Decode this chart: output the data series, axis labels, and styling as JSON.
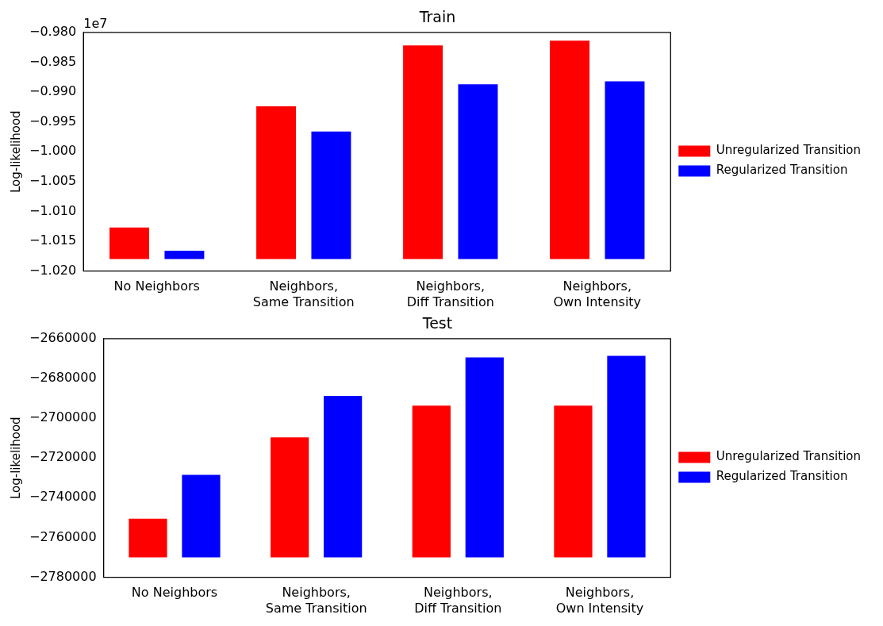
{
  "chart_data": [
    {
      "type": "bar",
      "title": "Train",
      "ylabel": "Log-likelihood",
      "annotations": [
        "1e7"
      ],
      "categories": [
        "No Neighbors",
        "Neighbors, Same Transition",
        "Neighbors, Diff Transition",
        "Neighbors, Own Intensity"
      ],
      "series": [
        {
          "name": "Unregularized Transition",
          "color": "#ff0000",
          "values": [
            0.0053,
            0.0256,
            0.0358,
            0.0366
          ],
          "base": [
            -1.018,
            -1.018,
            -1.018,
            -1.018
          ]
        },
        {
          "name": "Regularized Transition",
          "color": "#0000ff",
          "values": [
            0.0014,
            0.0214,
            0.0293,
            0.0298
          ],
          "base": [
            -1.018,
            -1.018,
            -1.018,
            -1.018
          ]
        }
      ],
      "ylim": [
        -1.02,
        -0.98
      ],
      "yticks": [
        {
          "value": -1.02,
          "label": "−1.020"
        },
        {
          "value": -1.015,
          "label": "−1.015"
        },
        {
          "value": -1.01,
          "label": "−1.010"
        },
        {
          "value": -1.005,
          "label": "−1.005"
        },
        {
          "value": -1.0,
          "label": "−1.000"
        },
        {
          "value": -0.995,
          "label": "−0.995"
        },
        {
          "value": -0.99,
          "label": "−0.990"
        },
        {
          "value": -0.985,
          "label": "−0.985"
        },
        {
          "value": -0.98,
          "label": "−0.980"
        }
      ],
      "grid": false,
      "legend": "right"
    },
    {
      "type": "bar",
      "title": "Test",
      "ylabel": "Log-likelihood",
      "categories": [
        "No Neighbors",
        "Neighbors, Same Transition",
        "Neighbors, Diff Transition",
        "Neighbors, Own Intensity"
      ],
      "series": [
        {
          "name": "Unregularized Transition",
          "color": "#ff0000",
          "values": [
            19500,
            60400,
            76300,
            76300
          ],
          "base": [
            -2770000,
            -2770000,
            -2770000,
            -2770000
          ]
        },
        {
          "name": "Regularized Transition",
          "color": "#0000ff",
          "values": [
            41500,
            81200,
            100500,
            101300
          ],
          "base": [
            -2770000,
            -2770000,
            -2770000,
            -2770000
          ]
        }
      ],
      "ylim": [
        -2780000,
        -2660000
      ],
      "yticks": [
        {
          "value": -2780000,
          "label": "−2780000"
        },
        {
          "value": -2760000,
          "label": "−2760000"
        },
        {
          "value": -2740000,
          "label": "−2740000"
        },
        {
          "value": -2720000,
          "label": "−2720000"
        },
        {
          "value": -2700000,
          "label": "−2700000"
        },
        {
          "value": -2680000,
          "label": "−2680000"
        },
        {
          "value": -2660000,
          "label": "−2660000"
        }
      ],
      "grid": false,
      "legend": "right"
    }
  ]
}
